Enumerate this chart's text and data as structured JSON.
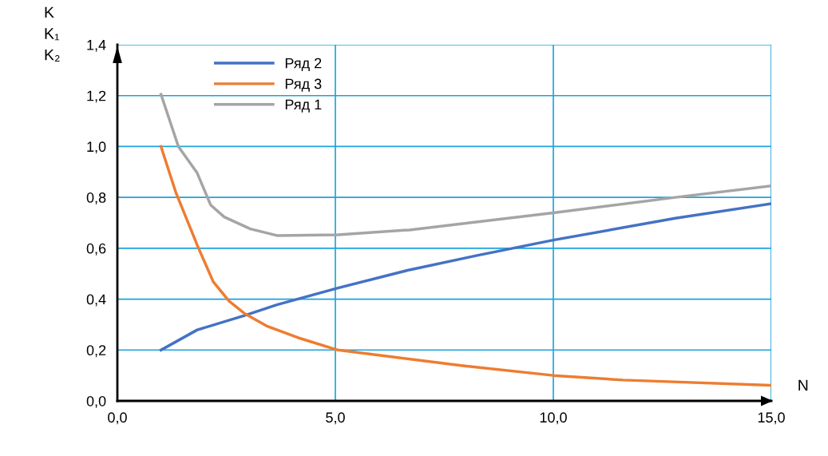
{
  "chart_data": {
    "type": "line",
    "xlabel": "N",
    "ylabel": "K\nK₁\nK₂",
    "xlim": [
      0,
      15
    ],
    "ylim": [
      0,
      1.4
    ],
    "xticks": [
      {
        "value": 0,
        "label": "0,0"
      },
      {
        "value": 5,
        "label": "5,0"
      },
      {
        "value": 10,
        "label": "10,0"
      },
      {
        "value": 15,
        "label": "15,0"
      }
    ],
    "yticks": [
      {
        "value": 0,
        "label": "0,0"
      },
      {
        "value": 0.2,
        "label": "0,2"
      },
      {
        "value": 0.4,
        "label": "0,4"
      },
      {
        "value": 0.6,
        "label": "0,6"
      },
      {
        "value": 0.8,
        "label": "0,8"
      },
      {
        "value": 1.0,
        "label": "1,0"
      },
      {
        "value": 1.2,
        "label": "1,2"
      },
      {
        "value": 1.4,
        "label": "1,4"
      }
    ],
    "grid": true,
    "legend": "top left",
    "marker": "none",
    "line_style": "solid",
    "series": [
      {
        "name": "Ряд 2",
        "color": "#4472c4",
        "x": [
          1,
          1.83,
          2.93,
          3.66,
          5.06,
          6.7,
          8.23,
          10,
          12.8,
          15
        ],
        "values": [
          0.2,
          0.279,
          0.336,
          0.378,
          0.444,
          0.515,
          0.571,
          0.632,
          0.718,
          0.775
        ]
      },
      {
        "name": "Ряд 3",
        "color": "#ed7d31",
        "x": [
          1,
          1.34,
          1.83,
          2.2,
          2.56,
          2.93,
          3.42,
          4.15,
          5.06,
          7.93,
          10,
          11.6,
          15
        ],
        "values": [
          1.0,
          0.82,
          0.613,
          0.468,
          0.393,
          0.342,
          0.295,
          0.248,
          0.2,
          0.138,
          0.1,
          0.082,
          0.061
        ]
      },
      {
        "name": "Ряд 1",
        "color": "#a5a5a5",
        "x": [
          1,
          1.4,
          1.83,
          2.14,
          2.45,
          3.05,
          3.66,
          5.06,
          6.7,
          8.23,
          10,
          12.8,
          15
        ],
        "values": [
          1.205,
          1.0,
          0.896,
          0.77,
          0.723,
          0.676,
          0.65,
          0.653,
          0.672,
          0.703,
          0.739,
          0.8,
          0.845
        ]
      }
    ]
  }
}
